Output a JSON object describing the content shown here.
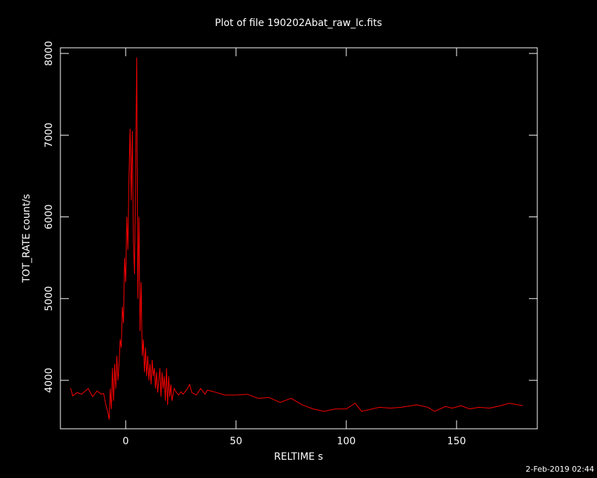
{
  "chart_data": {
    "type": "line",
    "title": "Plot of file 190202Abat_raw_lc.fits",
    "xlabel": "RELTIME  s",
    "ylabel": "TOT_RATE  count/s",
    "footer": "2-Feb-2019 02:44",
    "color": "#ff0000",
    "xlim": [
      -29.6,
      186.6
    ],
    "ylim": [
      3407,
      8069
    ],
    "xticks": [
      0,
      50,
      100,
      150
    ],
    "yticks": [
      4000,
      5000,
      6000,
      7000,
      8000
    ],
    "x": [
      -25,
      -24,
      -22,
      -20,
      -17,
      -15,
      -13,
      -11,
      -10,
      -9,
      -8,
      -7.5,
      -7,
      -6.5,
      -6,
      -5.5,
      -5,
      -4.5,
      -4,
      -3.5,
      -3,
      -2.5,
      -2,
      -1.5,
      -1,
      -0.5,
      0,
      0.5,
      1,
      1.5,
      2,
      2.5,
      3,
      3.5,
      4,
      4.5,
      5,
      5.5,
      6,
      6.5,
      7,
      7.5,
      8,
      8.5,
      9,
      9.5,
      10,
      10.5,
      11,
      11.5,
      12,
      12.5,
      13,
      13.5,
      14,
      14.5,
      15,
      15.5,
      16,
      16.5,
      17,
      17.5,
      18,
      18.5,
      19,
      19.5,
      20,
      20.5,
      21,
      22,
      23,
      24,
      25,
      26,
      28,
      29,
      30,
      32,
      34,
      36,
      37,
      40,
      45,
      50,
      55,
      60,
      65,
      70,
      75,
      80,
      85,
      90,
      95,
      100,
      104,
      107,
      115,
      120,
      125,
      132,
      137,
      140,
      145,
      148,
      152,
      156,
      160,
      165,
      170,
      174,
      180
    ],
    "values": [
      3905,
      3810,
      3850,
      3830,
      3900,
      3800,
      3870,
      3830,
      3840,
      3700,
      3600,
      3520,
      3900,
      3650,
      4150,
      3750,
      4200,
      3900,
      4300,
      4000,
      4200,
      4500,
      4400,
      4900,
      4700,
      5500,
      5200,
      6000,
      5600,
      6500,
      7080,
      6200,
      7050,
      5700,
      5300,
      6500,
      7950,
      5000,
      6000,
      4600,
      5200,
      4300,
      4500,
      4100,
      4400,
      4050,
      4300,
      4000,
      4200,
      3950,
      4250,
      4050,
      4150,
      3900,
      4100,
      3850,
      4000,
      4150,
      3800,
      4100,
      3900,
      4050,
      3750,
      4150,
      3700,
      4050,
      3800,
      3950,
      3750,
      3900,
      3850,
      3820,
      3860,
      3830,
      3900,
      3950,
      3850,
      3820,
      3900,
      3830,
      3880,
      3860,
      3820,
      3820,
      3830,
      3780,
      3790,
      3730,
      3780,
      3700,
      3650,
      3620,
      3650,
      3650,
      3720,
      3620,
      3670,
      3660,
      3670,
      3700,
      3670,
      3620,
      3680,
      3660,
      3690,
      3650,
      3670,
      3660,
      3690,
      3720,
      3690
    ]
  }
}
